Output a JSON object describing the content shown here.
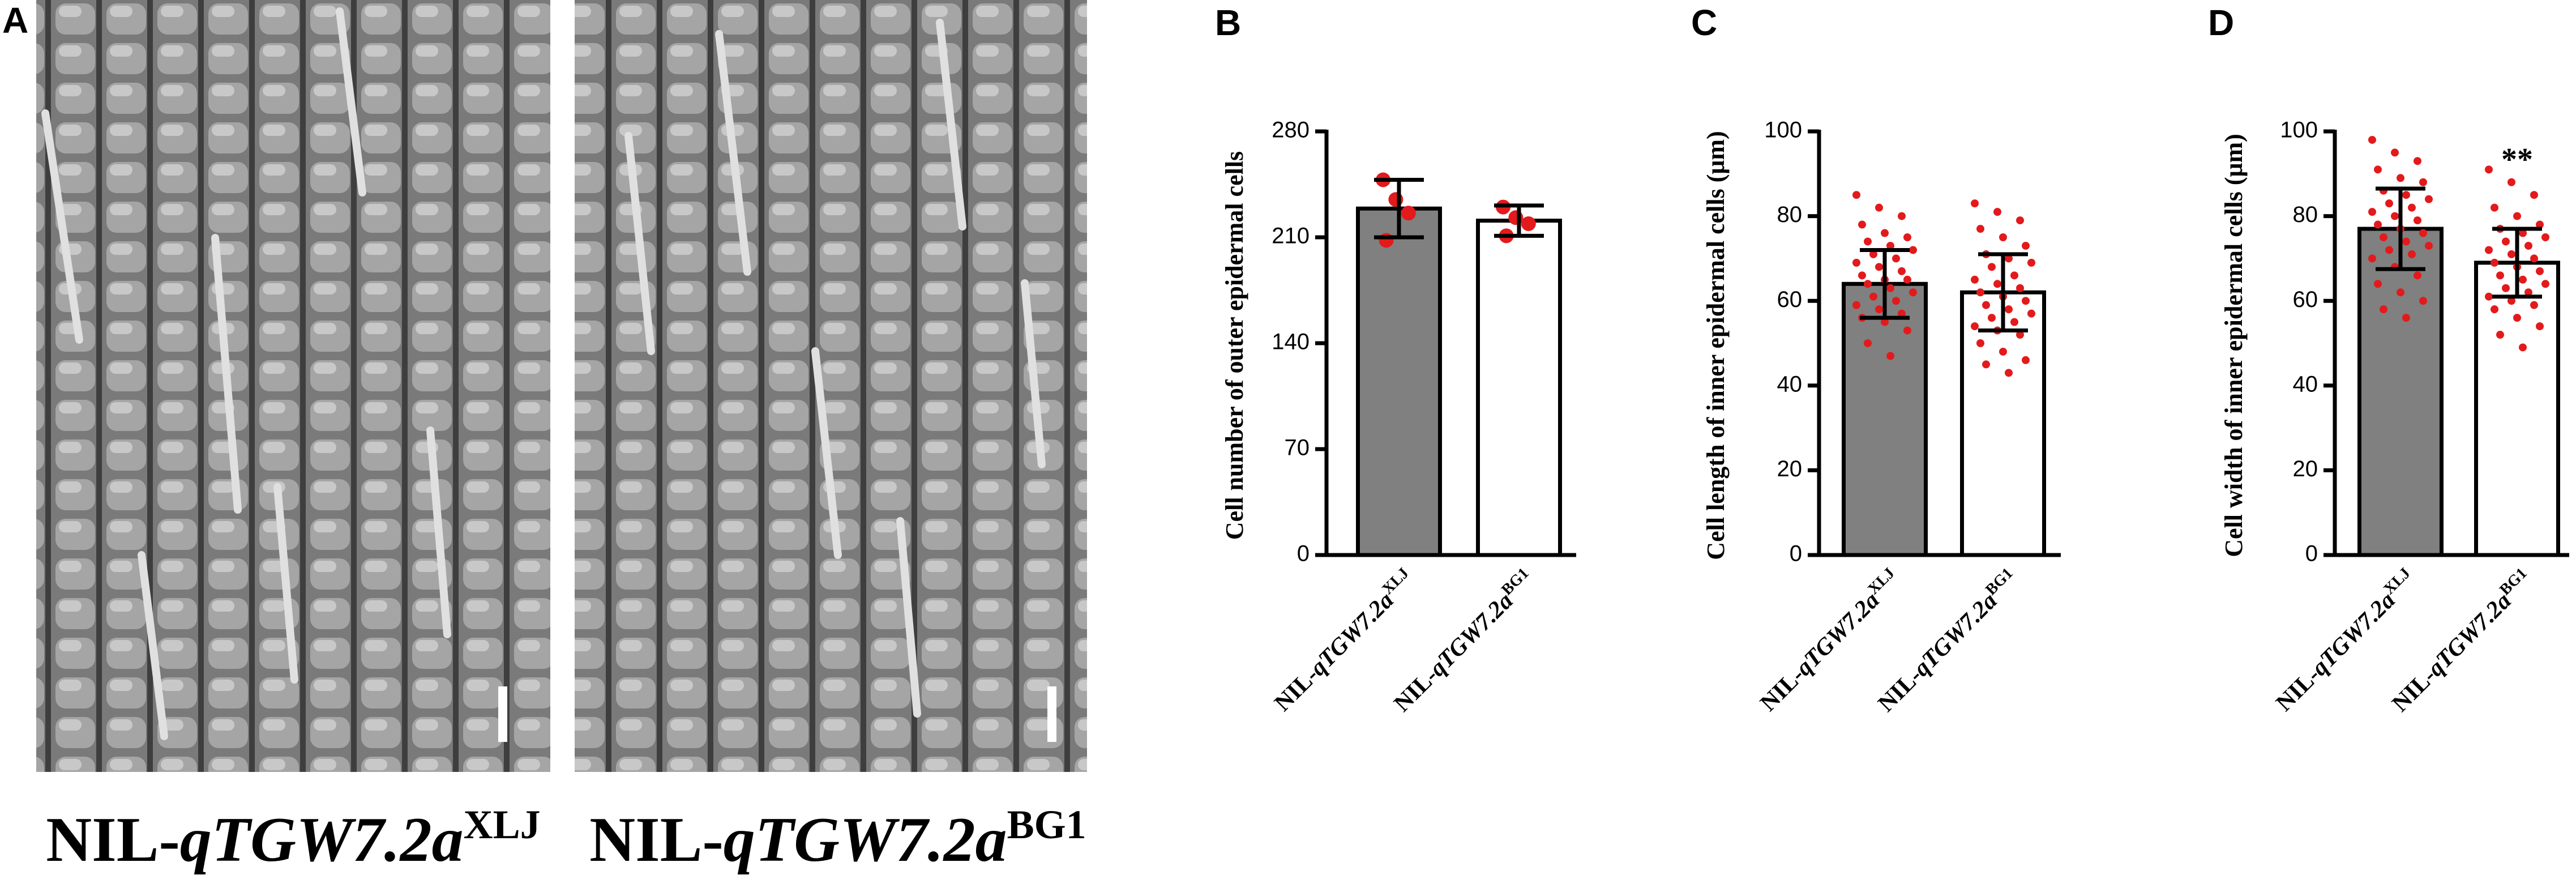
{
  "panel_labels": [
    "A",
    "B",
    "C",
    "D"
  ],
  "images": [
    {
      "caption": {
        "prefix": "NIL-",
        "italic": "qTGW7.2a",
        "sup": "XLJ"
      }
    },
    {
      "caption": {
        "prefix": "NIL-",
        "italic": "qTGW7.2a",
        "sup": "BG1"
      }
    }
  ],
  "chart_data": [
    {
      "type": "bar",
      "y_label": "Cell number of outer epidermal cells",
      "categories": [
        {
          "prefix": "NIL-",
          "italic": "qTGW7.2a",
          "sup": "XLJ"
        },
        {
          "prefix": "NIL-",
          "italic": "qTGW7.2a",
          "sup": "BG1"
        }
      ],
      "values": [
        229,
        221
      ],
      "errors": [
        19,
        10
      ],
      "points": [
        [
          248,
          235,
          226,
          208
        ],
        [
          230,
          223,
          219,
          211
        ]
      ],
      "bar_colors": [
        "#808080",
        "#ffffff"
      ],
      "point_color": "#e31a1c",
      "ylim": [
        0,
        280
      ],
      "yticks": [
        0,
        70,
        140,
        210,
        280
      ]
    },
    {
      "type": "bar",
      "y_label": "Cell length of inner epidermal cells (μm)",
      "categories": [
        {
          "prefix": "NIL-",
          "italic": "qTGW7.2a",
          "sup": "XLJ"
        },
        {
          "prefix": "NIL-",
          "italic": "qTGW7.2a",
          "sup": "BG1"
        }
      ],
      "values": [
        64,
        62
      ],
      "errors": [
        8,
        9
      ],
      "points": [
        [
          85,
          82,
          80,
          78,
          76,
          75,
          74,
          73,
          72,
          71,
          70,
          69,
          68,
          67,
          66,
          65,
          65,
          64,
          63,
          62,
          61,
          60,
          59,
          58,
          57,
          56,
          55,
          53,
          50,
          47
        ],
        [
          83,
          81,
          79,
          77,
          75,
          73,
          71,
          70,
          69,
          68,
          66,
          65,
          64,
          63,
          62,
          61,
          60,
          59,
          58,
          57,
          56,
          55,
          54,
          53,
          52,
          50,
          48,
          46,
          45,
          43
        ]
      ],
      "bar_colors": [
        "#808080",
        "#ffffff"
      ],
      "point_color": "#e31a1c",
      "ylim": [
        0,
        100
      ],
      "yticks": [
        0,
        20,
        40,
        60,
        80,
        100
      ]
    },
    {
      "type": "bar",
      "y_label": "Cell width of inner epidermal cells (μm)",
      "categories": [
        {
          "prefix": "NIL-",
          "italic": "qTGW7.2a",
          "sup": "XLJ"
        },
        {
          "prefix": "NIL-",
          "italic": "qTGW7.2a",
          "sup": "BG1"
        }
      ],
      "values": [
        77,
        69
      ],
      "errors": [
        9.5,
        8
      ],
      "points": [
        [
          98,
          95,
          93,
          91,
          89,
          88,
          86,
          85,
          84,
          83,
          82,
          81,
          80,
          79,
          78,
          77,
          76,
          75,
          74,
          73,
          72,
          71,
          70,
          68,
          66,
          64,
          62,
          60,
          58,
          56
        ],
        [
          91,
          88,
          85,
          82,
          80,
          78,
          77,
          76,
          75,
          74,
          73,
          72,
          71,
          70,
          69,
          68,
          67,
          66,
          65,
          64,
          63,
          62,
          61,
          60,
          59,
          58,
          56,
          54,
          52,
          49
        ]
      ],
      "annotation": "**",
      "bar_colors": [
        "#808080",
        "#ffffff"
      ],
      "point_color": "#e31a1c",
      "ylim": [
        0,
        100
      ],
      "yticks": [
        0,
        20,
        40,
        60,
        80,
        100
      ]
    }
  ]
}
